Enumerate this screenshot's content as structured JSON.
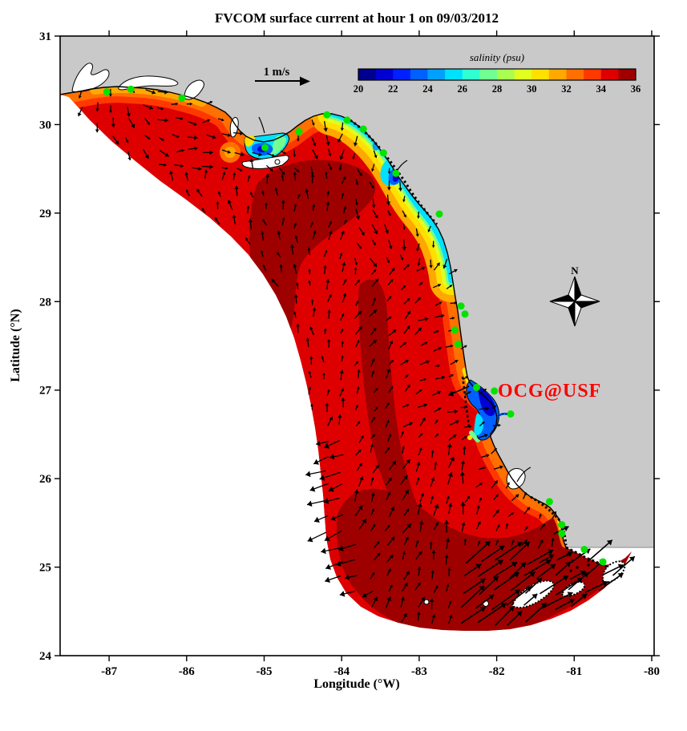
{
  "figure": {
    "title": "FVCOM surface current at hour 1 on 09/03/2012"
  },
  "chart_data": {
    "type": "map",
    "subtype": "ocean-model surface current quiver over salinity color fill, West Florida Shelf",
    "title": "FVCOM surface current at hour 1 on 09/03/2012",
    "model": "FVCOM",
    "forecast_hour": 1,
    "date": "09/03/2012",
    "xlabel": "Longitude (°W)",
    "ylabel": "Latitude (°N)",
    "xlim": [
      -87.63,
      -80.0
    ],
    "ylim": [
      24.0,
      31.0
    ],
    "xticks": [
      -87,
      -86,
      -85,
      -84,
      -83,
      -82,
      -81,
      -80
    ],
    "yticks": [
      31,
      30,
      29,
      28,
      27,
      26,
      25,
      24
    ],
    "grid": false,
    "colorbar": {
      "label": "salinity (psu)",
      "min": 20,
      "max": 36,
      "ticks": [
        20,
        22,
        24,
        26,
        28,
        30,
        32,
        34,
        36
      ],
      "colors": [
        "#00008F",
        "#0000D2",
        "#0020FF",
        "#0060FF",
        "#00A0FF",
        "#00E0FF",
        "#30FFD0",
        "#70FF90",
        "#A8FF50",
        "#E0FF20",
        "#FFE000",
        "#FFA800",
        "#FF7000",
        "#FF3800",
        "#DE0000",
        "#9E0000"
      ]
    },
    "scale_arrow": {
      "label": "1 m/s"
    },
    "north_arrow_label": "N",
    "watermark": {
      "text": "OCG@USF",
      "color": "#FF0000"
    },
    "stations_lonlat": [
      [
        -87.03,
        30.37
      ],
      [
        -86.72,
        30.4
      ],
      [
        -86.06,
        30.3
      ],
      [
        -84.99,
        29.74
      ],
      [
        -84.55,
        29.92
      ],
      [
        -84.19,
        30.11
      ],
      [
        -83.93,
        30.05
      ],
      [
        -83.72,
        29.95
      ],
      [
        -83.46,
        29.68
      ],
      [
        -83.3,
        29.45
      ],
      [
        -82.74,
        28.99
      ],
      [
        -82.46,
        27.95
      ],
      [
        -82.41,
        27.86
      ],
      [
        -82.54,
        27.68
      ],
      [
        -82.5,
        27.52
      ],
      [
        -82.26,
        27.03
      ],
      [
        -82.03,
        26.99
      ],
      [
        -81.82,
        26.73
      ],
      [
        -81.32,
        25.74
      ],
      [
        -81.16,
        25.48
      ],
      [
        -81.16,
        25.38
      ],
      [
        -80.87,
        25.2
      ],
      [
        -80.63,
        25.06
      ]
    ],
    "vector_field": {
      "style": "small black arrows on ~0.2 degree grid; strong northeastward Florida Current arrows along the Keys; offshore-directed arrows at the southwest open boundary",
      "color": "#000000",
      "reference": "1 m/s"
    },
    "colors": {
      "land": "#C9C9C9",
      "outside_domain": "#FFFFFF",
      "station_marker": "#00E400",
      "coastline": "#000000"
    }
  }
}
